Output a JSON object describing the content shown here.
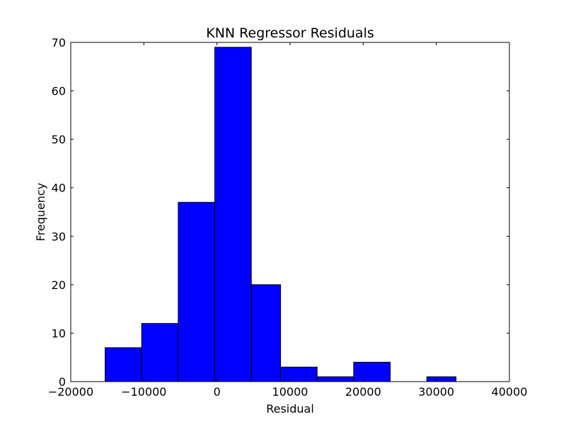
{
  "chart_data": {
    "type": "bar",
    "subtype": "histogram",
    "title": "KNN Regressor Residuals",
    "xlabel": "Residual",
    "ylabel": "Frequency",
    "xlim": [
      -20000,
      40000
    ],
    "ylim": [
      0,
      70
    ],
    "x_ticks": [
      -20000,
      -10000,
      0,
      10000,
      20000,
      30000,
      40000
    ],
    "x_tick_labels": [
      "−20000",
      "−10000",
      "0",
      "10000",
      "20000",
      "30000",
      "40000"
    ],
    "y_ticks": [
      0,
      10,
      20,
      30,
      40,
      50,
      60,
      70
    ],
    "y_tick_labels": [
      "0",
      "10",
      "20",
      "30",
      "40",
      "50",
      "60",
      "70"
    ],
    "bins": [
      {
        "start": -15300,
        "end": -10300,
        "count": 7
      },
      {
        "start": -10300,
        "end": -5300,
        "count": 12
      },
      {
        "start": -5300,
        "end": -300,
        "count": 37
      },
      {
        "start": -300,
        "end": 4700,
        "count": 69
      },
      {
        "start": 4700,
        "end": 8700,
        "count": 20
      },
      {
        "start": 8700,
        "end": 13700,
        "count": 3
      },
      {
        "start": 13700,
        "end": 18700,
        "count": 1
      },
      {
        "start": 18700,
        "end": 23700,
        "count": 4
      },
      {
        "start": 23700,
        "end": 28700,
        "count": 0
      },
      {
        "start": 28700,
        "end": 32700,
        "count": 1
      }
    ],
    "bar_color": "#0000ff",
    "edge_color": "#000000",
    "grid": false,
    "legend": "none"
  }
}
